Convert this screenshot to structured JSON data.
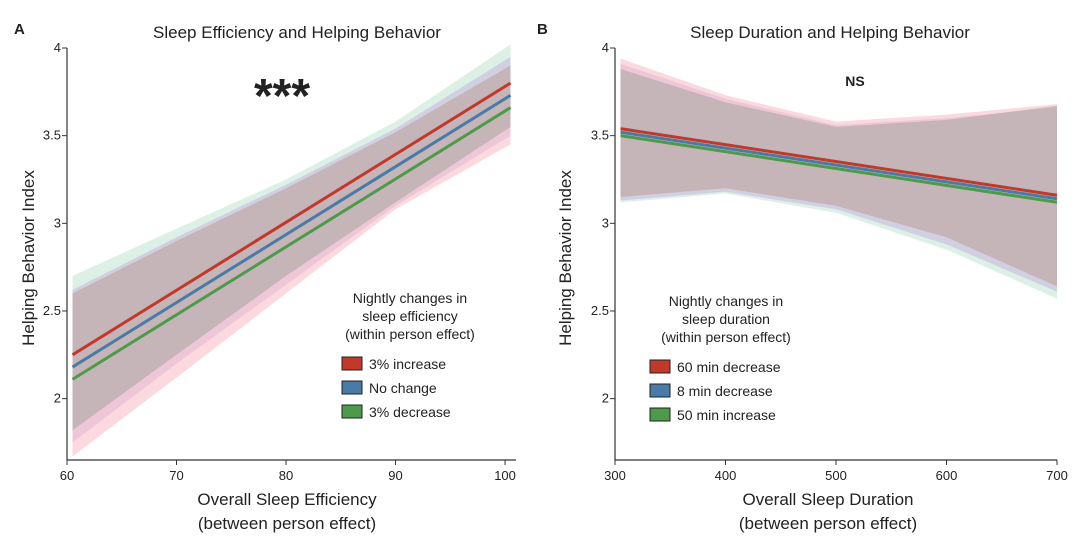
{
  "chart_data": [
    {
      "type": "line",
      "panel": "A",
      "title": "Sleep Efficiency and Helping Behavior",
      "xlabel": "Overall Sleep Efficiency",
      "xlabel2": "(between person effect)",
      "ylabel": "Helping Behavior Index",
      "xlim": [
        60,
        101
      ],
      "ylim": [
        1.65,
        4
      ],
      "xticks": [
        60,
        70,
        80,
        90,
        100
      ],
      "xtick_labels": [
        "60",
        "70",
        "80",
        "90",
        "100"
      ],
      "yticks": [
        2,
        2.5,
        3,
        3.5,
        4
      ],
      "ytick_labels": [
        "2",
        "2.5",
        "3",
        "3.5",
        "4"
      ],
      "significance": "***",
      "legend": {
        "title": [
          "Nightly changes in",
          "sleep efficiency",
          "(within person effect)"
        ],
        "placement": "bottom-right"
      },
      "series": [
        {
          "name": "3% increase",
          "color": "#c0392b",
          "band_color": "#f7b9c4",
          "x": [
            60.5,
            100.5
          ],
          "y": [
            2.25,
            3.8
          ],
          "band_x": [
            60.5,
            70,
            80,
            90,
            100.5
          ],
          "band_lower": [
            1.67,
            2.12,
            2.6,
            3.08,
            3.45
          ],
          "band_upper": [
            2.6,
            2.9,
            3.2,
            3.52,
            3.9
          ]
        },
        {
          "name": "No change",
          "color": "#4a7ba6",
          "band_color": "#c8b6e2",
          "x": [
            60.5,
            100.5
          ],
          "y": [
            2.18,
            3.73
          ],
          "band_x": [
            60.5,
            70,
            80,
            90,
            100.5
          ],
          "band_lower": [
            1.75,
            2.2,
            2.65,
            3.1,
            3.5
          ],
          "band_upper": [
            2.62,
            2.92,
            3.22,
            3.54,
            3.95
          ]
        },
        {
          "name": "3% decrease",
          "color": "#4e9a4b",
          "band_color": "#bfe3cf",
          "x": [
            60.5,
            100.5
          ],
          "y": [
            2.11,
            3.66
          ],
          "band_x": [
            60.5,
            70,
            80,
            90,
            100.5
          ],
          "band_lower": [
            1.82,
            2.25,
            2.7,
            3.12,
            3.55
          ],
          "band_upper": [
            2.7,
            2.97,
            3.25,
            3.58,
            4.02
          ]
        }
      ]
    },
    {
      "type": "line",
      "panel": "B",
      "title": "Sleep Duration and Helping Behavior",
      "xlabel": "Overall Sleep Duration",
      "xlabel2": "(between person effect)",
      "ylabel": "Helping Behavior Index",
      "xlim": [
        300,
        700
      ],
      "ylim": [
        1.65,
        4
      ],
      "xticks": [
        300,
        400,
        500,
        600,
        700
      ],
      "xtick_labels": [
        "300",
        "400",
        "500",
        "600",
        "700"
      ],
      "yticks": [
        2,
        2.5,
        3,
        3.5,
        4
      ],
      "ytick_labels": [
        "2",
        "2.5",
        "3",
        "3.5",
        "4"
      ],
      "significance": "NS",
      "legend": {
        "title": [
          "Nightly changes in",
          "sleep duration",
          "(within person effect)"
        ],
        "placement": "bottom-left"
      },
      "series": [
        {
          "name": "60 min decrease",
          "color": "#c0392b",
          "band_color": "#f7b9c4",
          "x": [
            305,
            700
          ],
          "y": [
            3.54,
            3.16
          ],
          "band_x": [
            305,
            400,
            500,
            600,
            700
          ],
          "band_lower": [
            3.15,
            3.2,
            3.1,
            2.92,
            2.64
          ],
          "band_upper": [
            3.94,
            3.73,
            3.58,
            3.62,
            3.68
          ]
        },
        {
          "name": "8 min decrease",
          "color": "#4a7ba6",
          "band_color": "#c8b6e2",
          "x": [
            305,
            700
          ],
          "y": [
            3.52,
            3.14
          ],
          "band_x": [
            305,
            400,
            500,
            600,
            700
          ],
          "band_lower": [
            3.13,
            3.18,
            3.08,
            2.88,
            2.61
          ],
          "band_upper": [
            3.91,
            3.71,
            3.56,
            3.6,
            3.66
          ]
        },
        {
          "name": "50 min increase",
          "color": "#4e9a4b",
          "band_color": "#bfe3cf",
          "x": [
            305,
            700
          ],
          "y": [
            3.5,
            3.12
          ],
          "band_x": [
            305,
            400,
            500,
            600,
            700
          ],
          "band_lower": [
            3.12,
            3.17,
            3.06,
            2.85,
            2.57
          ],
          "band_upper": [
            3.88,
            3.69,
            3.55,
            3.59,
            3.67
          ]
        }
      ]
    }
  ]
}
